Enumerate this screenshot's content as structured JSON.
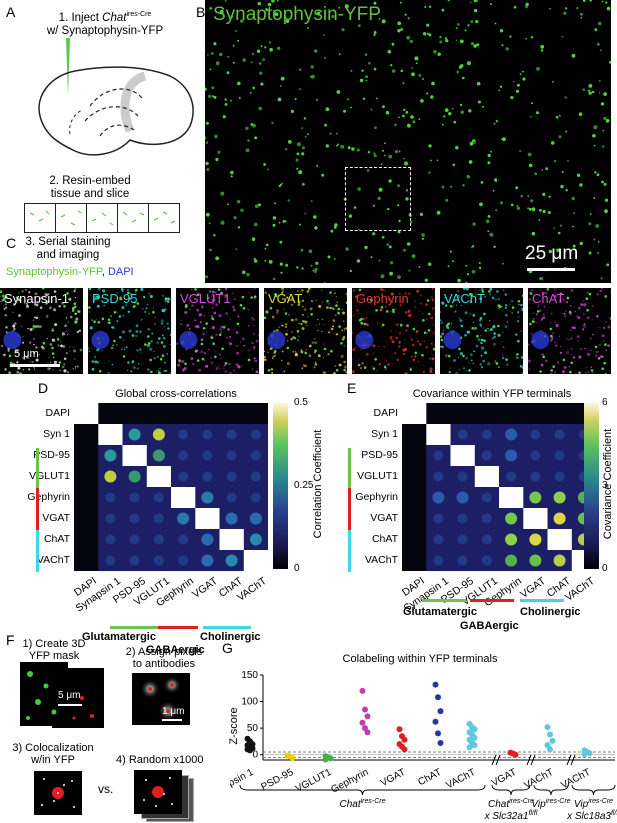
{
  "panelA": {
    "letter": "A",
    "step1_line1": "1. Inject ",
    "step1_italic": "Chat",
    "step1_sup": "ires-Cre",
    "step1_line2": "w/ Synaptophysin-YFP",
    "step2_line1": "2. Resin-embed",
    "step2_line2": "tissue and slice"
  },
  "panelB": {
    "letter": "B",
    "title": "Synaptophysin-YFP",
    "scalebar": "25 μm"
  },
  "panelC": {
    "letter": "C",
    "step3_line1": "3. Serial staining",
    "step3_line2": "and imaging",
    "legend_yfp": "Synaptophysin-YFP",
    "legend_sep": ", ",
    "legend_dapi": "DAPI",
    "scalebar": "5 μm",
    "strips": [
      {
        "label": "Synapsin-1",
        "color": "#ffffff",
        "dot": "#dddddd"
      },
      {
        "label": "PSD-95",
        "color": "#3fd6d6",
        "dot": "#35c8c8"
      },
      {
        "label": "VGLUT1",
        "color": "#d84cd8",
        "dot": "#c23fc2"
      },
      {
        "label": "VGAT",
        "color": "#e6d93a",
        "dot": "#d9cf37"
      },
      {
        "label": "Gephyrin",
        "color": "#e03a3a",
        "dot": "#d03030"
      },
      {
        "label": "VAChT",
        "color": "#3fd6d6",
        "dot": "#35c8c8"
      },
      {
        "label": "ChAT",
        "color": "#d84cd8",
        "dot": "#c23fc2"
      }
    ]
  },
  "panelD": {
    "letter": "D",
    "title": "Global cross-correlations",
    "colorbar_label": "Correlation Coefficient",
    "ticks": [
      "0.5",
      "0.25",
      "0"
    ],
    "rows": [
      "DAPI",
      "Syn 1",
      "PSD-95",
      "VGLUT1",
      "Gephyrin",
      "VGAT",
      "ChAT",
      "VAChT"
    ],
    "cols": [
      "DAPI",
      "Synapsin 1",
      "PSD-95",
      "VGLUT1",
      "Gephyrin",
      "VGAT",
      "ChAT",
      "VAChT"
    ],
    "groups": [
      "Glutamatergic",
      "GABAergic",
      "Cholinergic"
    ]
  },
  "panelE": {
    "letter": "E",
    "title": "Covariance within YFP terminals",
    "colorbar_label": "Covariance Coefficient",
    "ticks": [
      "6",
      "3",
      "0"
    ],
    "rows": [
      "DAPI",
      "Syn 1",
      "PSD-95",
      "VGLUT1",
      "Gephyrin",
      "VGAT",
      "ChAT",
      "VAChT"
    ],
    "cols": [
      "DAPI",
      "Synapsin 1",
      "PSD-95",
      "VGLUT1",
      "Gephyrin",
      "VGAT",
      "ChAT",
      "VAChT"
    ],
    "groups": [
      "Glutamatergic",
      "GABAergic",
      "Cholinergic"
    ]
  },
  "panelF": {
    "letter": "F",
    "s1_line1": "1) Create 3D",
    "s1_line2": "YFP mask",
    "s2_line1": "2) Assign pixels",
    "s2_line2": "to antibodies",
    "s3_line1": "3) Colocalization",
    "s3_line2": "w/in YFP",
    "s4": "4) Random x1000",
    "vs": "vs.",
    "scale1": "5 μm",
    "scale2": "1 μm"
  },
  "panelG": {
    "letter": "G",
    "title": "Colabeling within YFP terminals",
    "ylabel": "Z-score",
    "yticks": [
      "150",
      "100",
      "50",
      "0"
    ],
    "xcats": [
      "Synapsin 1",
      "PSD-95",
      "VGLUT1",
      "Gephyrin",
      "VGAT",
      "ChAT",
      "VAChT",
      "VGAT",
      "VAChT",
      "VAChT"
    ],
    "group1": "Chat",
    "group1_sup": "ires-Cre",
    "group2_a": "Chat",
    "group2_a_sup": "ires-Cre",
    "group2_b": "x Slc32a1",
    "group2_b_sup": "fl/fl",
    "group3": "Vip",
    "group3_sup": "ires-Cre",
    "group4_a": "Vip",
    "group4_a_sup": "ires-Cre",
    "group4_b": "x Slc18a3",
    "group4_b_sup": "fl/fl"
  },
  "chart_data": {
    "type": "scatter",
    "title": "Colabeling within YFP terminals",
    "ylabel": "Z-score",
    "ylim": [
      -10,
      150
    ],
    "categories": [
      "Synapsin 1",
      "PSD-95",
      "VGLUT1",
      "Gephyrin",
      "VGAT",
      "ChAT",
      "VAChT",
      "VGAT",
      "VAChT",
      "VAChT"
    ],
    "series": [
      {
        "color": "#111111",
        "values": [
          [
            30,
            25,
            20,
            18,
            15,
            12,
            10,
            8
          ]
        ]
      },
      {
        "color": "#e6d000",
        "values": [
          [
            -2,
            -4,
            -6
          ]
        ]
      },
      {
        "color": "#44b044",
        "values": [
          [
            -3,
            -5,
            -7,
            -9
          ]
        ]
      },
      {
        "color": "#c23fa8",
        "values": [
          [
            120,
            85,
            72,
            60,
            50,
            42
          ]
        ]
      },
      {
        "color": "#e02020",
        "values": [
          [
            48,
            35,
            28,
            20,
            15,
            10
          ]
        ]
      },
      {
        "color": "#2038a0",
        "values": [
          [
            132,
            108,
            82,
            62,
            40,
            22
          ]
        ]
      },
      {
        "color": "#5ec8dc",
        "values": [
          [
            58,
            52,
            48,
            42,
            38,
            32,
            28,
            22,
            18,
            14
          ]
        ]
      },
      {
        "color": "#e02020",
        "values": [
          [
            4,
            2,
            0
          ]
        ]
      },
      {
        "color": "#5ec8dc",
        "values": [
          [
            52,
            38,
            26,
            18,
            10
          ]
        ]
      },
      {
        "color": "#5ec8dc",
        "values": [
          [
            8,
            5,
            3,
            1
          ]
        ]
      }
    ]
  }
}
